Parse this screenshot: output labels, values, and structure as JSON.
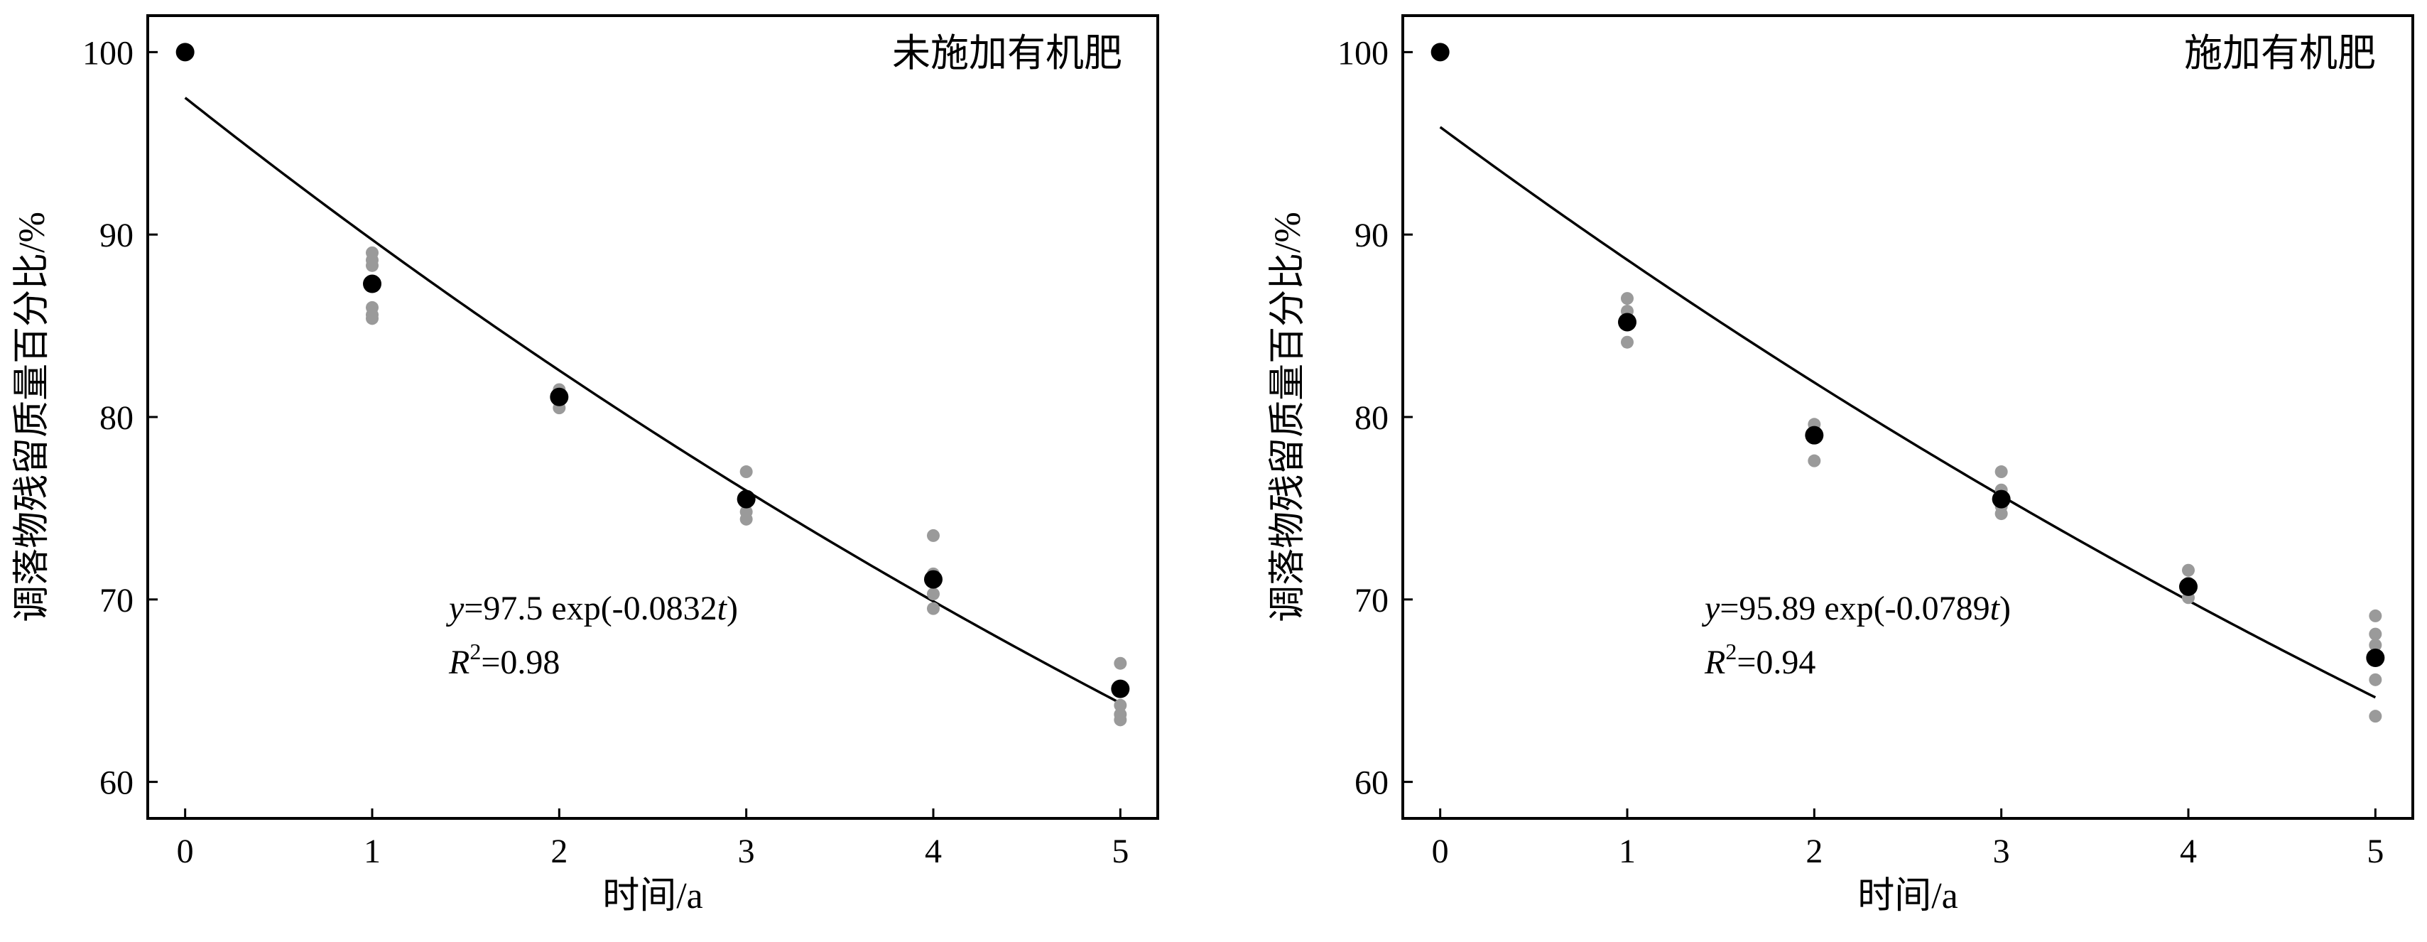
{
  "chart_data": [
    {
      "type": "scatter",
      "panel_label": "未施加有机肥",
      "xlabel": "时间/a",
      "ylabel": "调落物残留质量百分比/%",
      "xlim": [
        -0.2,
        5.2
      ],
      "ylim": [
        58,
        102
      ],
      "xticks": [
        0,
        1,
        2,
        3,
        4,
        5
      ],
      "yticks": [
        60,
        70,
        80,
        90,
        100
      ],
      "grid": false,
      "means": {
        "x": [
          0,
          1,
          2,
          3,
          4,
          5
        ],
        "y": [
          100,
          87.3,
          81.1,
          75.5,
          71.1,
          65.1
        ],
        "color": "#000000"
      },
      "replicates": {
        "x": [
          1,
          1,
          1,
          1,
          1,
          1,
          2,
          2,
          2,
          3,
          3,
          3,
          4,
          4,
          4,
          4,
          5,
          5,
          5,
          5
        ],
        "y": [
          89.0,
          88.6,
          88.3,
          86.0,
          85.6,
          85.4,
          81.5,
          80.9,
          80.5,
          77.0,
          74.8,
          74.4,
          73.5,
          71.4,
          70.3,
          69.5,
          66.5,
          64.2,
          63.7,
          63.4
        ],
        "color": "#9a9a9a"
      },
      "fit": {
        "a": 97.5,
        "b": 0.0832,
        "color": "#000000"
      },
      "equation": {
        "y": "y",
        "rest": "=97.5 exp(-0.0832",
        "t": "t",
        "close": ")"
      },
      "r2": {
        "r": "R",
        "sup": "2",
        "rest": "=0.98"
      }
    },
    {
      "type": "scatter",
      "panel_label": "施加有机肥",
      "xlabel": "时间/a",
      "ylabel": "调落物残留质量百分比/%",
      "xlim": [
        -0.2,
        5.2
      ],
      "ylim": [
        58,
        102
      ],
      "xticks": [
        0,
        1,
        2,
        3,
        4,
        5
      ],
      "yticks": [
        60,
        70,
        80,
        90,
        100
      ],
      "grid": false,
      "means": {
        "x": [
          0,
          1,
          2,
          3,
          4,
          5
        ],
        "y": [
          100,
          85.2,
          79.0,
          75.5,
          70.7,
          66.8
        ],
        "color": "#000000"
      },
      "replicates": {
        "x": [
          1,
          1,
          1,
          2,
          2,
          3,
          3,
          3,
          3,
          4,
          4,
          4,
          5,
          5,
          5,
          5,
          5
        ],
        "y": [
          86.5,
          85.8,
          84.1,
          79.6,
          77.6,
          77.0,
          76.0,
          75.1,
          74.7,
          71.6,
          70.9,
          70.1,
          69.1,
          68.1,
          67.5,
          65.6,
          63.6
        ],
        "color": "#9a9a9a"
      },
      "fit": {
        "a": 95.89,
        "b": 0.0789,
        "color": "#000000"
      },
      "equation": {
        "y": "y",
        "rest": "=95.89 exp(-0.0789",
        "t": "t",
        "close": ")"
      },
      "r2": {
        "r": "R",
        "sup": "2",
        "rest": "=0.94"
      }
    }
  ]
}
